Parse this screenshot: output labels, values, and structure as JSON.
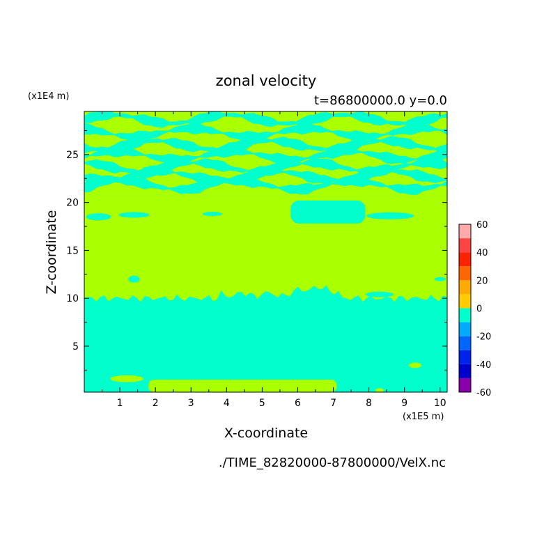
{
  "chart_data": {
    "type": "heatmap",
    "title": "zonal velocity",
    "subtitle": "t=86800000.0 y=0.0",
    "xlabel": "X-coordinate",
    "ylabel": "Z-coordinate",
    "x_scale_note": "(x1E5 m)",
    "y_scale_note": "(x1E4 m)",
    "source_note": "./TIME_82820000-87800000/VelX.nc",
    "xlim": [
      0,
      10.2
    ],
    "ylim": [
      0.2,
      29.5
    ],
    "x_ticks": [
      1,
      2,
      3,
      4,
      5,
      6,
      7,
      8,
      9,
      10
    ],
    "y_ticks": [
      5,
      10,
      15,
      20,
      25
    ],
    "colorbar": {
      "tick_labels": [
        "60",
        "40",
        "20",
        "0",
        "-20",
        "-40",
        "-60"
      ],
      "levels": [
        -60,
        -50,
        -40,
        -30,
        -20,
        -10,
        0,
        10,
        20,
        30,
        40,
        50,
        60
      ],
      "colors": [
        "#8800aa",
        "#0000cc",
        "#0022ee",
        "#0066ff",
        "#00aaff",
        "#00ffcc",
        "#aaff00",
        "#ffcc00",
        "#ffaa00",
        "#ff6600",
        "#ff2200",
        "#ff4444",
        "#ffaaaa"
      ]
    },
    "colors": {
      "negative_band": "#00ffcc",
      "positive_band": "#aaff00"
    },
    "regions": [
      {
        "value": "0 to 10",
        "z_range": [
          20.5,
          29.5
        ],
        "pattern": "alternating bands"
      },
      {
        "value": "-10 to 0",
        "z_range": [
          20.5,
          29.5
        ],
        "pattern": "alternating bands"
      },
      {
        "value": "0 to 10",
        "z_range": [
          10,
          20.5
        ]
      },
      {
        "value": "-10 to 0",
        "x_range": [
          5.8,
          7.9
        ],
        "z_range": [
          17.8,
          20.2
        ]
      },
      {
        "value": "-10 to 0",
        "z_range": [
          0.2,
          10
        ]
      },
      {
        "value": "0 to 10",
        "x_range": [
          1.7,
          7.1
        ],
        "z_range": [
          0.2,
          1.4
        ]
      }
    ]
  }
}
